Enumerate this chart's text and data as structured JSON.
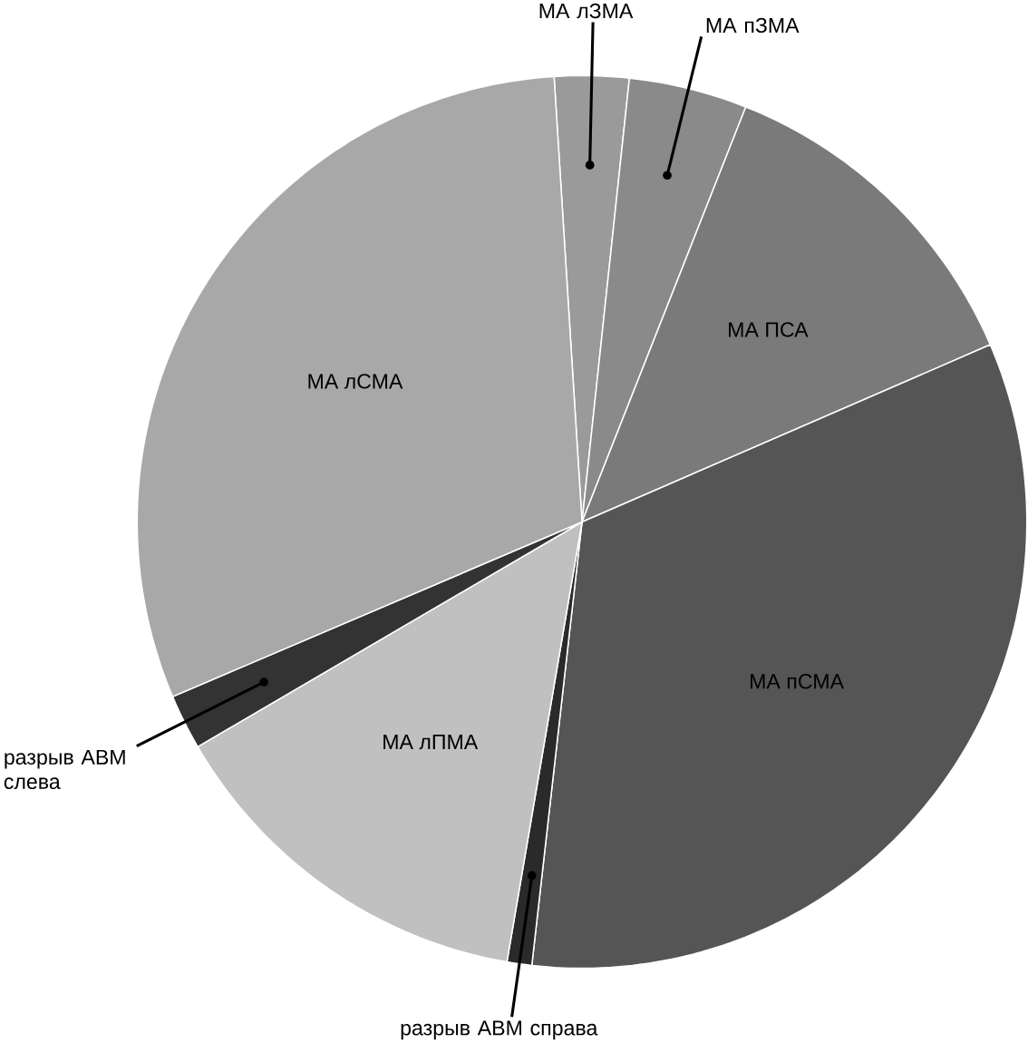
{
  "chart_data": {
    "type": "pie",
    "categories": [
      "МА лЗМА",
      "МА пЗМА",
      "МА ПСА",
      "МА пСМА",
      "разрыв АВМ справа",
      "МА лПМА",
      "разрыв АВМ слева",
      "МА лСМА"
    ],
    "values": [
      2.7,
      4.3,
      12.5,
      33.3,
      0.9,
      13.9,
      2.0,
      30.4
    ],
    "colors": [
      "#9a9a9a",
      "#8a8a8a",
      "#7a7a7a",
      "#555555",
      "#2a2a2a",
      "#c0c0c0",
      "#333333",
      "#a8a8a8"
    ]
  }
}
